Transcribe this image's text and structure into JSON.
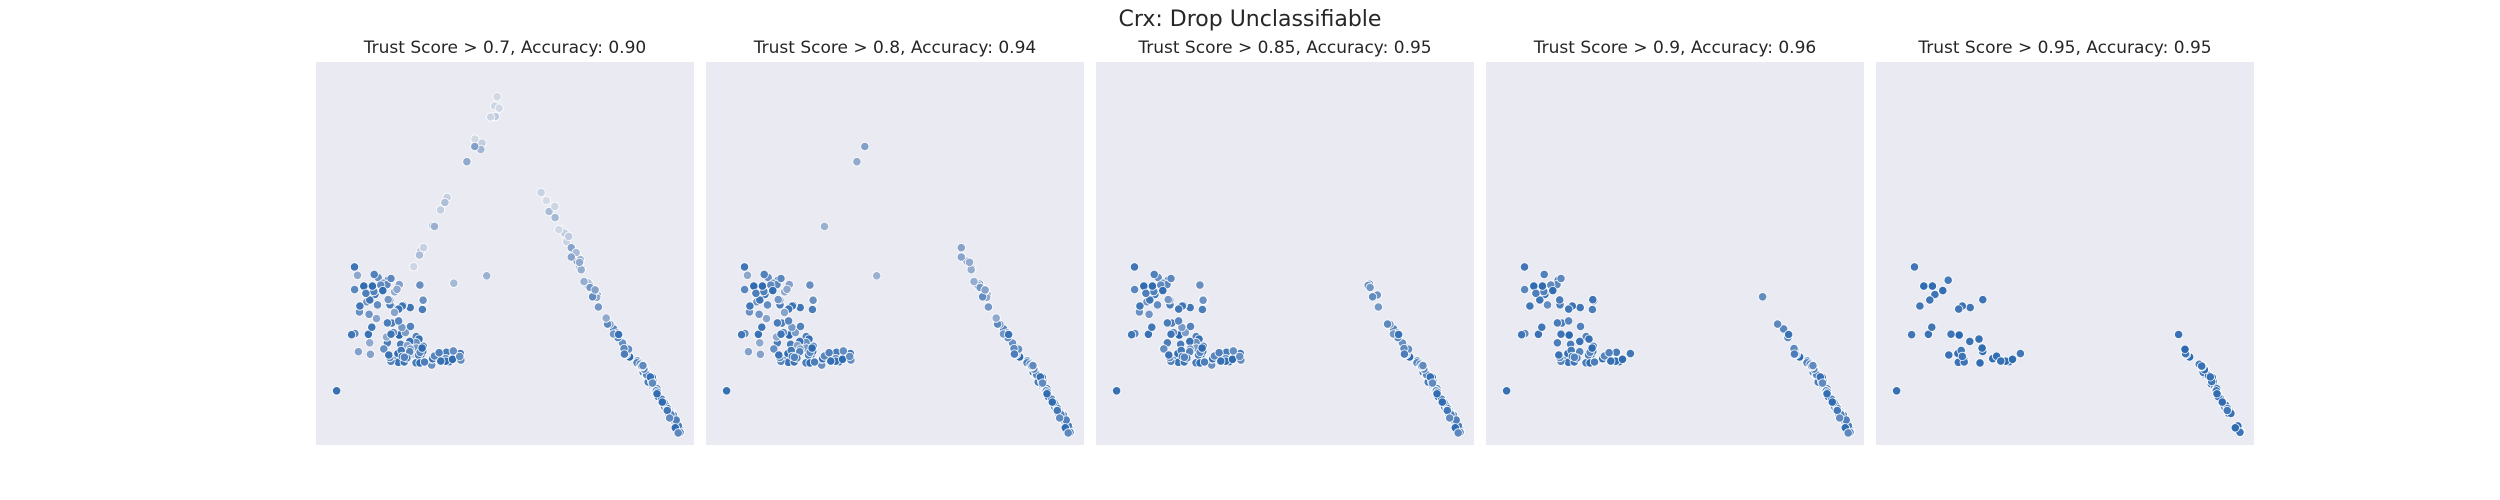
{
  "figure": {
    "title": "Crx: Drop Unclassifiable"
  },
  "colors": {
    "panel_bg": "#EAEAF2",
    "page_bg": "#FFFFFF",
    "point_edge": "#FFFFFF",
    "palette": [
      "#2C69B0",
      "#8DA7CD",
      "#F0F0F0",
      "#E7A08E",
      "#D05B4E"
    ]
  },
  "chart_data": [
    {
      "type": "scatter",
      "title": "Trust Score > 0.7, Accuracy: 0.90",
      "grid": false,
      "xlim": [
        0,
        100
      ],
      "ylim": [
        0,
        100
      ],
      "threshold": 0.7,
      "accuracy": 0.9
    },
    {
      "type": "scatter",
      "title": "Trust Score > 0.8, Accuracy: 0.94",
      "grid": false,
      "xlim": [
        0,
        100
      ],
      "ylim": [
        0,
        100
      ],
      "threshold": 0.8,
      "accuracy": 0.94
    },
    {
      "type": "scatter",
      "title": "Trust Score > 0.85, Accuracy: 0.95",
      "grid": false,
      "xlim": [
        0,
        100
      ],
      "ylim": [
        0,
        100
      ],
      "threshold": 0.85,
      "accuracy": 0.95
    },
    {
      "type": "scatter",
      "title": "Trust Score > 0.9, Accuracy: 0.96",
      "grid": false,
      "xlim": [
        0,
        100
      ],
      "ylim": [
        0,
        100
      ],
      "threshold": 0.9,
      "accuracy": 0.96
    },
    {
      "type": "scatter",
      "title": "Trust Score > 0.95, Accuracy: 0.95",
      "grid": false,
      "xlim": [
        0,
        100
      ],
      "ylim": [
        0,
        100
      ],
      "threshold": 0.95,
      "accuracy": 0.95
    }
  ]
}
